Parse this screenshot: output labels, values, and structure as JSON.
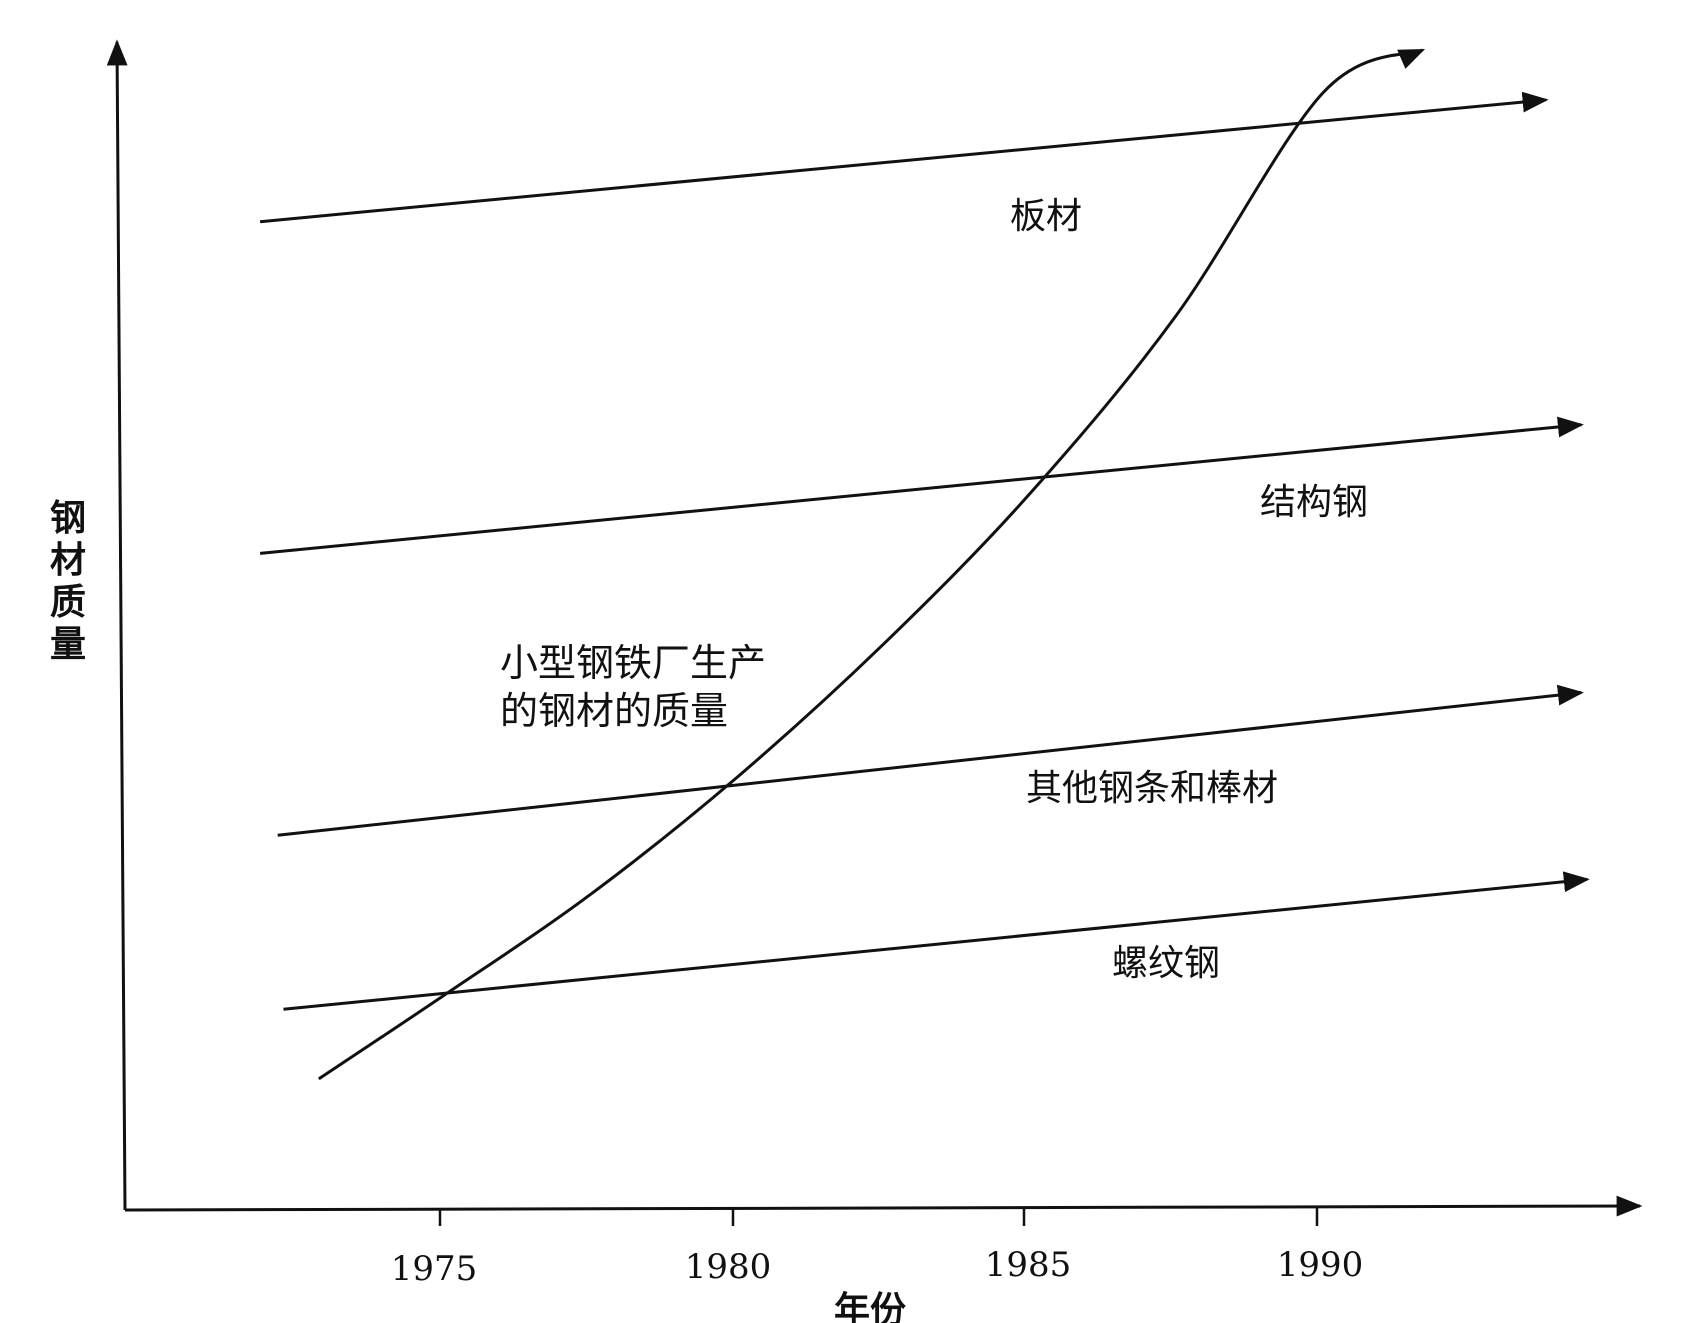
{
  "chart_data": {
    "type": "line",
    "xlabel": "年份",
    "ylabel": "钢材质量",
    "xlim": [
      1969.6,
      1995.4
    ],
    "ylim": [
      0,
      1
    ],
    "x_ticks": [
      "1975",
      "1980",
      "1985",
      "1990"
    ],
    "grid": false,
    "legend": "none",
    "series": [
      {
        "name": "板材",
        "x": [
          1971.9,
          1993.8
        ],
        "y": [
          0.852,
          0.957
        ]
      },
      {
        "name": "结构钢",
        "x": [
          1971.9,
          1994.4
        ],
        "y": [
          0.566,
          0.677
        ]
      },
      {
        "name": "其他钢条和棒材",
        "x": [
          1972.2,
          1994.4
        ],
        "y": [
          0.323,
          0.446
        ]
      },
      {
        "name": "螺纹钢",
        "x": [
          1972.3,
          1994.5
        ],
        "y": [
          0.173,
          0.285
        ]
      },
      {
        "name": "小型钢铁厂生产的钢材的质量",
        "x": [
          1972.9,
          1975.0,
          1977.5,
          1980.0,
          1982.5,
          1985.0,
          1987.5,
          1990.0,
          1991.7
        ],
        "y": [
          0.113,
          0.184,
          0.271,
          0.372,
          0.487,
          0.617,
          0.771,
          0.963,
          1.0
        ]
      }
    ]
  },
  "colors": {
    "line": "#111111",
    "background": "#ffffff"
  }
}
